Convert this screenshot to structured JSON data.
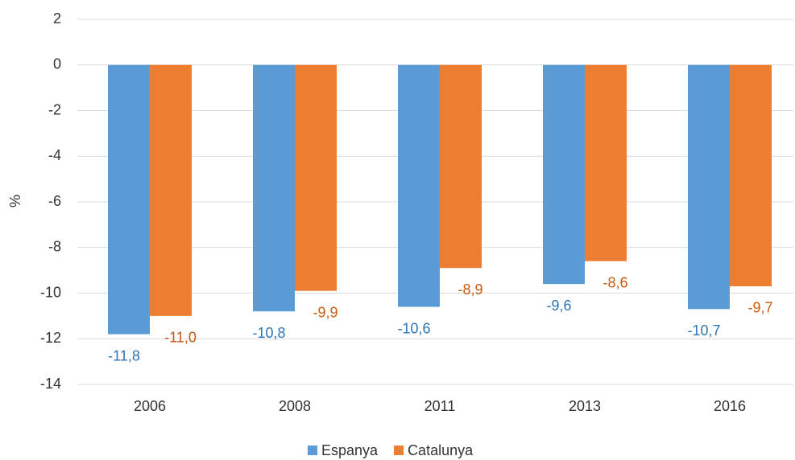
{
  "chart_data": {
    "type": "bar",
    "y_label": "%",
    "categories": [
      "2006",
      "2008",
      "2011",
      "2013",
      "2016"
    ],
    "series": [
      {
        "name": "Espanya",
        "color": "#5b9bd5",
        "label_color": "#2e75b6",
        "values": [
          -11.8,
          -10.8,
          -10.6,
          -9.6,
          -10.7
        ],
        "value_labels": [
          "-11,8",
          "-10,8",
          "-10,6",
          "-9,6",
          "-10,7"
        ]
      },
      {
        "name": "Catalunya",
        "color": "#ed7d31",
        "label_color": "#c55a11",
        "values": [
          -11.0,
          -9.9,
          -8.9,
          -8.6,
          -9.7
        ],
        "value_labels": [
          "-11,0",
          "-9,9",
          "-8,9",
          "-8,6",
          "-9,7"
        ]
      }
    ],
    "ylim": [
      -14,
      2
    ],
    "yticks": [
      -14,
      -12,
      -10,
      -8,
      -6,
      -4,
      -2,
      0,
      2
    ],
    "grid": true,
    "legend": "bottom"
  }
}
